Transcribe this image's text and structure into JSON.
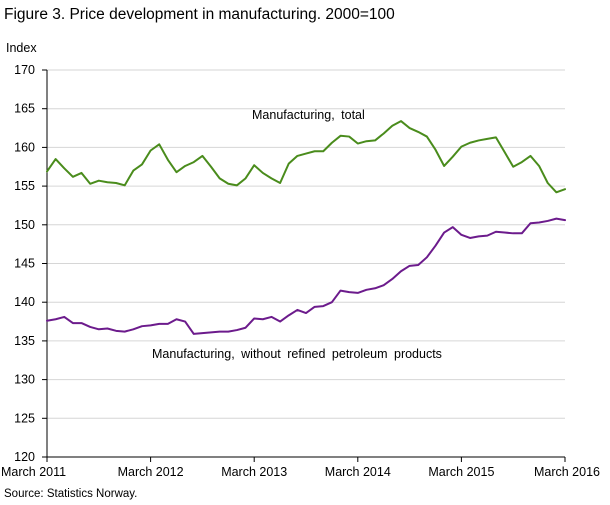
{
  "page": {
    "title": "Figure 3. Price development in manufacturing. 2000=100",
    "source": "Source: Statistics Norway."
  },
  "chart_data": {
    "type": "line",
    "title": "Figure 3. Price development in manufacturing. 2000=100",
    "ylabel": "Index",
    "xlabel": "",
    "ylim": [
      120,
      170
    ],
    "yticks": [
      120,
      125,
      130,
      135,
      140,
      145,
      150,
      155,
      160,
      165,
      170
    ],
    "xticks": [
      "March 2011",
      "March 2012",
      "March 2013",
      "March 2014",
      "March 2015",
      "March 2016"
    ],
    "grid": "horizontal",
    "legend": "inline labels",
    "x": [
      "2011-03",
      "2011-04",
      "2011-05",
      "2011-06",
      "2011-07",
      "2011-08",
      "2011-09",
      "2011-10",
      "2011-11",
      "2011-12",
      "2012-01",
      "2012-02",
      "2012-03",
      "2012-04",
      "2012-05",
      "2012-06",
      "2012-07",
      "2012-08",
      "2012-09",
      "2012-10",
      "2012-11",
      "2012-12",
      "2013-01",
      "2013-02",
      "2013-03",
      "2013-04",
      "2013-05",
      "2013-06",
      "2013-07",
      "2013-08",
      "2013-09",
      "2013-10",
      "2013-11",
      "2013-12",
      "2014-01",
      "2014-02",
      "2014-03",
      "2014-04",
      "2014-05",
      "2014-06",
      "2014-07",
      "2014-08",
      "2014-09",
      "2014-10",
      "2014-11",
      "2014-12",
      "2015-01",
      "2015-02",
      "2015-03",
      "2015-04",
      "2015-05",
      "2015-06",
      "2015-07",
      "2015-08",
      "2015-09",
      "2015-10",
      "2015-11",
      "2015-12",
      "2016-01",
      "2016-02",
      "2016-03"
    ],
    "series": [
      {
        "name": "Manufacturing,  total",
        "color": "#4a8c1c",
        "values": [
          156.9,
          158.5,
          157.3,
          156.2,
          156.7,
          155.3,
          155.7,
          155.5,
          155.4,
          155.1,
          157.0,
          157.8,
          159.6,
          160.4,
          158.4,
          156.8,
          157.6,
          158.1,
          158.9,
          157.5,
          156.0,
          155.3,
          155.1,
          156.0,
          157.7,
          156.7,
          156.0,
          155.4,
          157.9,
          158.9,
          159.2,
          159.5,
          159.5,
          160.6,
          161.5,
          161.4,
          160.5,
          160.8,
          160.9,
          161.8,
          162.8,
          163.4,
          162.5,
          162.0,
          161.4,
          159.7,
          157.6,
          158.8,
          160.1,
          160.6,
          160.9,
          161.1,
          161.3,
          159.4,
          157.5,
          158.1,
          158.9,
          157.6,
          155.4,
          154.2,
          154.6
        ]
      },
      {
        "name": "Manufacturing,  without refined  petroleum  products",
        "color": "#6c1b8c",
        "values": [
          137.6,
          137.8,
          138.1,
          137.3,
          137.3,
          136.8,
          136.5,
          136.6,
          136.3,
          136.2,
          136.5,
          136.9,
          137.0,
          137.2,
          137.2,
          137.8,
          137.5,
          135.9,
          136.0,
          136.1,
          136.2,
          136.2,
          136.4,
          136.7,
          137.9,
          137.8,
          138.1,
          137.5,
          138.3,
          139.0,
          138.6,
          139.4,
          139.5,
          140.0,
          141.5,
          141.3,
          141.2,
          141.6,
          141.8,
          142.2,
          143.0,
          144.0,
          144.7,
          144.8,
          145.8,
          147.3,
          149.0,
          149.7,
          148.7,
          148.3,
          148.5,
          148.6,
          149.1,
          149.0,
          148.9,
          148.9,
          150.2,
          150.3,
          150.5,
          150.8,
          150.6
        ]
      }
    ]
  }
}
